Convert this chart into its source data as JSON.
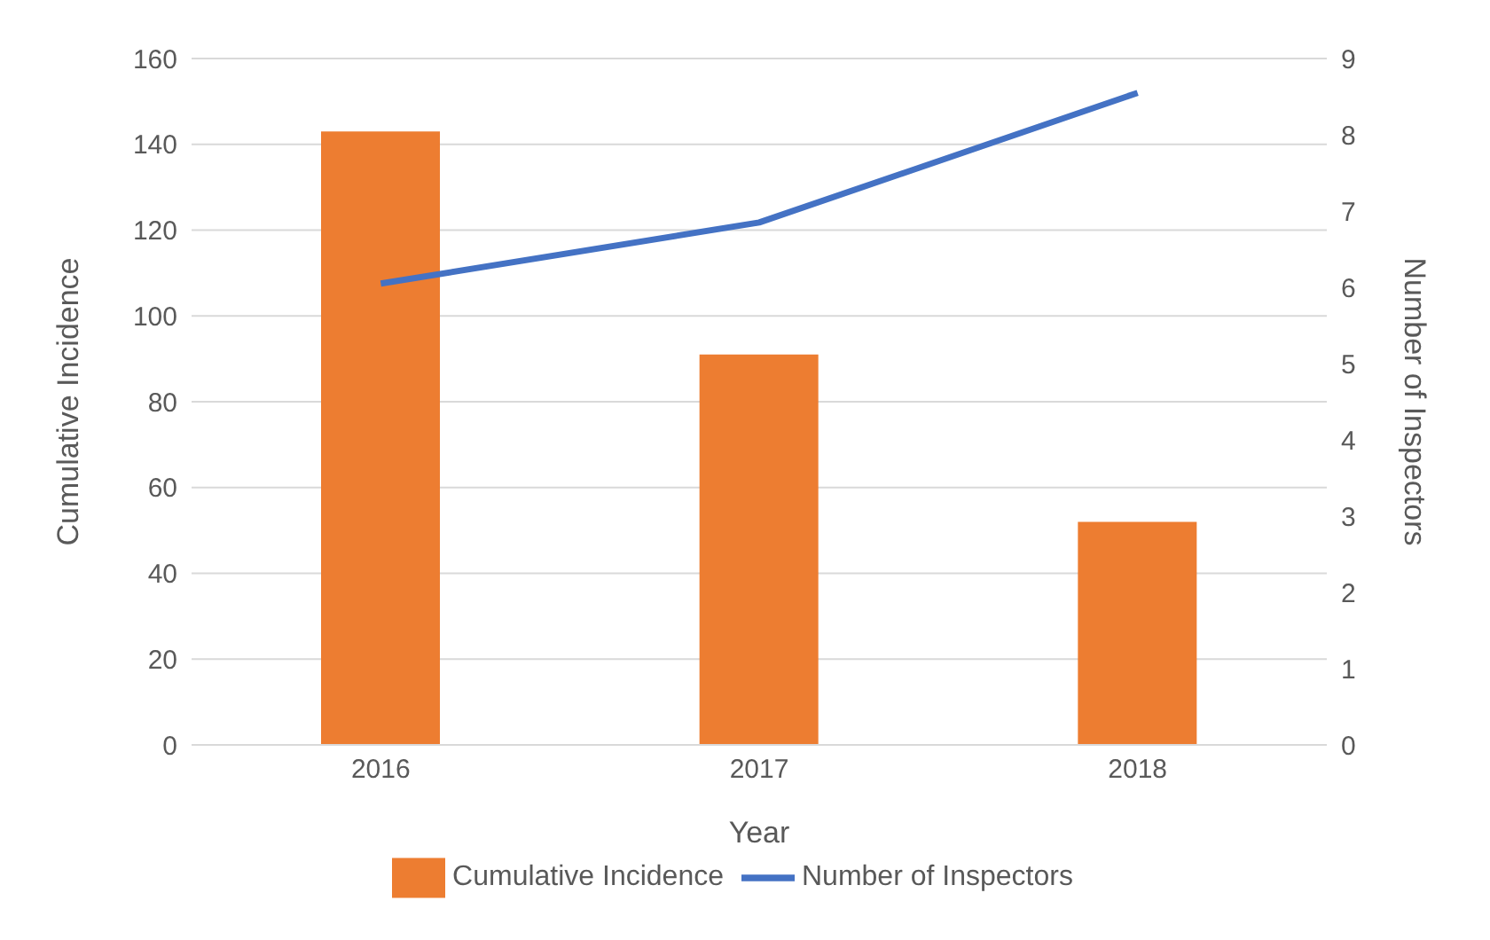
{
  "chart_data": {
    "type": "bar",
    "categories": [
      "2016",
      "2017",
      "2018"
    ],
    "xlabel": "Year",
    "ylabel": "Cumulative Incidence",
    "y2label": "Number of Inspectors",
    "series": [
      {
        "name": "Cumulative Incidence",
        "color": "#ed7d31",
        "values": [
          143,
          91,
          52
        ]
      },
      {
        "name": "Number of Inspectors",
        "type": "line",
        "axis": "y2",
        "color": "#4472c4",
        "values": [
          6.05,
          6.85,
          8.55
        ]
      }
    ],
    "ylim": [
      0,
      160
    ],
    "yticks": [
      0,
      20,
      40,
      60,
      80,
      100,
      120,
      140,
      160
    ],
    "y2lim": [
      0,
      9
    ],
    "y2ticks": [
      0,
      1,
      2,
      3,
      4,
      5,
      6,
      7,
      8,
      9
    ],
    "grid": "y",
    "legend": "bottom",
    "marker": "none"
  }
}
